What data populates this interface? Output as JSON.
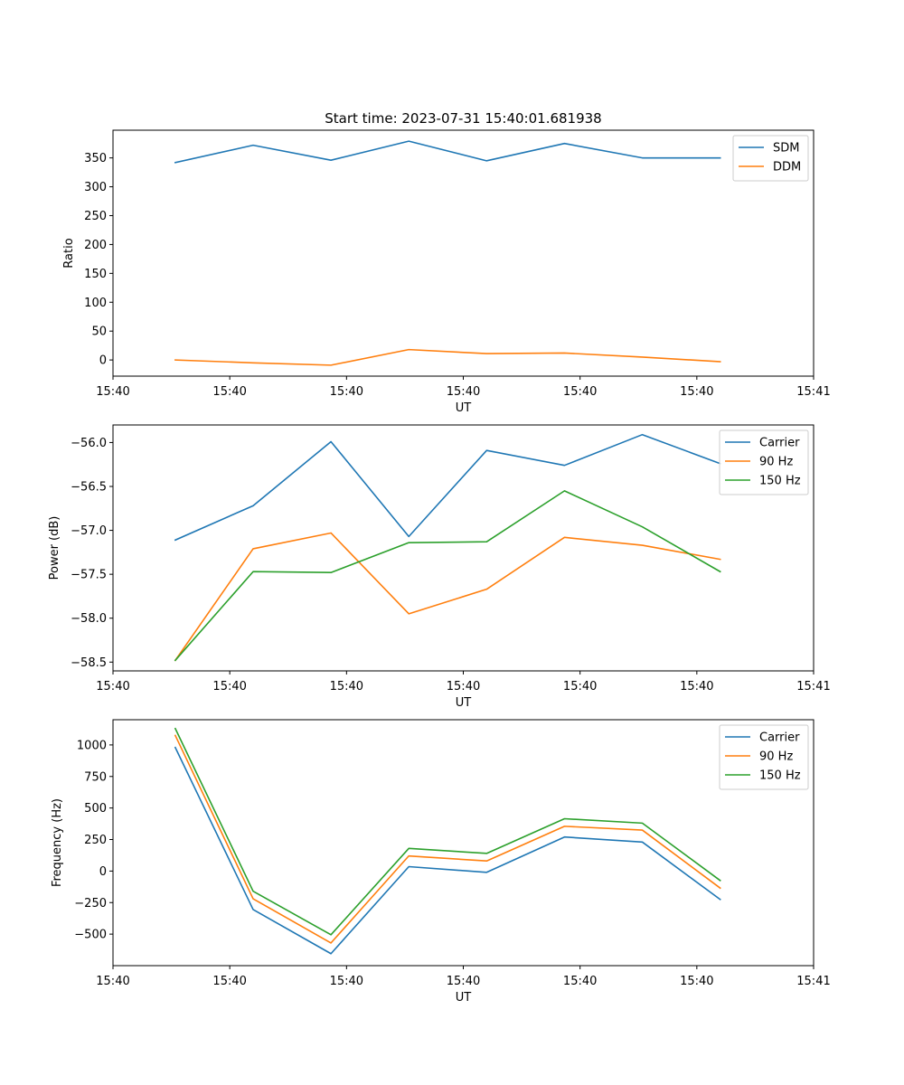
{
  "figure": {
    "title": "Start time: 2023-07-31 15:40:01.681938"
  },
  "colors": {
    "blue": "#1f77b4",
    "orange": "#ff7f0e",
    "green": "#2ca02c"
  },
  "chart_data": [
    {
      "type": "line",
      "title": "Start time: 2023-07-31 15:40:01.681938",
      "xlabel": "UT",
      "ylabel": "Ratio",
      "x": [
        1,
        2,
        3,
        4,
        5,
        6,
        7,
        8
      ],
      "xlim": [
        0.2,
        9.2
      ],
      "ylim": [
        -28,
        398
      ],
      "x_ticks": [
        0.2,
        1.7,
        3.2,
        4.7,
        6.2,
        7.7,
        9.2
      ],
      "x_tick_labels": [
        "15:40",
        "15:40",
        "15:40",
        "15:40",
        "15:40",
        "15:40",
        "15:41"
      ],
      "y_ticks": [
        0,
        50,
        100,
        150,
        200,
        250,
        300,
        350
      ],
      "y_tick_labels": [
        "0",
        "50",
        "100",
        "150",
        "200",
        "250",
        "300",
        "350"
      ],
      "legend_position": "top-right",
      "series": [
        {
          "name": "SDM",
          "color": "#1f77b4",
          "values": [
            342,
            372,
            346,
            379,
            345,
            375,
            350,
            350
          ]
        },
        {
          "name": "DDM",
          "color": "#ff7f0e",
          "values": [
            0,
            -5,
            -9,
            18,
            11,
            12,
            5,
            -3
          ]
        }
      ]
    },
    {
      "type": "line",
      "xlabel": "UT",
      "ylabel": "Power (dB)",
      "x": [
        1,
        2,
        3,
        4,
        5,
        6,
        7,
        8
      ],
      "xlim": [
        0.2,
        9.2
      ],
      "ylim": [
        -58.6,
        -55.8
      ],
      "x_ticks": [
        0.2,
        1.7,
        3.2,
        4.7,
        6.2,
        7.7,
        9.2
      ],
      "x_tick_labels": [
        "15:40",
        "15:40",
        "15:40",
        "15:40",
        "15:40",
        "15:40",
        "15:41"
      ],
      "y_ticks": [
        -58.5,
        -58.0,
        -57.5,
        -57.0,
        -56.5,
        -56.0
      ],
      "y_tick_labels": [
        "−58.5",
        "−58.0",
        "−57.5",
        "−57.0",
        "−56.5",
        "−56.0"
      ],
      "legend_position": "top-right",
      "series": [
        {
          "name": "Carrier",
          "color": "#1f77b4",
          "values": [
            -57.11,
            -56.72,
            -55.99,
            -57.07,
            -56.09,
            -56.26,
            -55.91,
            -56.24
          ]
        },
        {
          "name": "90 Hz",
          "color": "#ff7f0e",
          "values": [
            -58.48,
            -57.21,
            -57.03,
            -57.95,
            -57.67,
            -57.08,
            -57.17,
            -57.33
          ]
        },
        {
          "name": "150 Hz",
          "color": "#2ca02c",
          "values": [
            -58.48,
            -57.47,
            -57.48,
            -57.14,
            -57.13,
            -56.55,
            -56.96,
            -57.47
          ]
        }
      ]
    },
    {
      "type": "line",
      "xlabel": "UT",
      "ylabel": "Frequency (Hz)",
      "x": [
        1,
        2,
        3,
        4,
        5,
        6,
        7,
        8
      ],
      "xlim": [
        0.2,
        9.2
      ],
      "ylim": [
        -750,
        1200
      ],
      "x_ticks": [
        0.2,
        1.7,
        3.2,
        4.7,
        6.2,
        7.7,
        9.2
      ],
      "x_tick_labels": [
        "15:40",
        "15:40",
        "15:40",
        "15:40",
        "15:40",
        "15:40",
        "15:41"
      ],
      "y_ticks": [
        -500,
        -250,
        0,
        250,
        500,
        750,
        1000
      ],
      "y_tick_labels": [
        "−500",
        "−250",
        "0",
        "250",
        "500",
        "750",
        "1000"
      ],
      "legend_position": "top-right",
      "series": [
        {
          "name": "Carrier",
          "color": "#1f77b4",
          "values": [
            980,
            -305,
            -655,
            35,
            -10,
            270,
            230,
            -225
          ]
        },
        {
          "name": "90 Hz",
          "color": "#ff7f0e",
          "values": [
            1075,
            -220,
            -570,
            120,
            80,
            355,
            325,
            -135
          ]
        },
        {
          "name": "150 Hz",
          "color": "#2ca02c",
          "values": [
            1130,
            -160,
            -505,
            180,
            140,
            415,
            380,
            -75
          ]
        }
      ]
    }
  ]
}
